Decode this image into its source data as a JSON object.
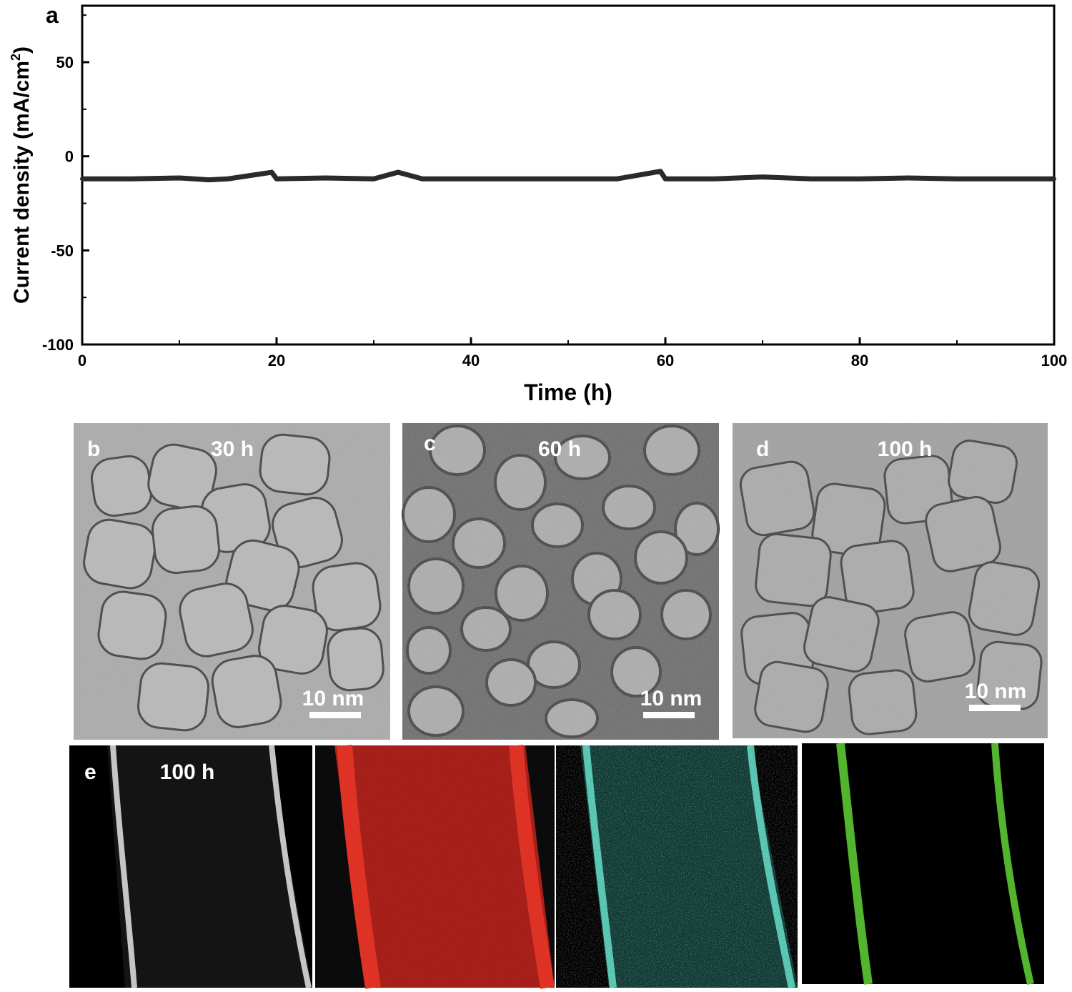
{
  "chart_data": {
    "type": "line",
    "panel_label": "a",
    "xlabel": "Time (h)",
    "ylabel": "Current density (mA/cm",
    "ylabel_sup": "2",
    "ylabel_close": ")",
    "xlim": [
      0,
      100
    ],
    "ylim": [
      -100,
      80
    ],
    "xticks": [
      0,
      20,
      40,
      60,
      80,
      100
    ],
    "yticks": [
      -100,
      -50,
      0,
      50
    ],
    "grid": false,
    "series": [
      {
        "x": [
          0,
          5,
          10,
          13,
          15,
          19.5,
          20,
          25,
          30,
          32.5,
          35,
          40,
          45,
          50,
          55,
          59.5,
          60,
          65,
          70,
          75,
          80,
          85,
          90,
          95,
          100
        ],
        "y": [
          -12,
          -12,
          -11.5,
          -12.5,
          -12,
          -8.5,
          -12,
          -11.5,
          -12,
          -8.5,
          -12,
          -12,
          -12,
          -12,
          -12,
          -8,
          -12,
          -12,
          -11,
          -12,
          -12,
          -11.5,
          -12,
          -12,
          -12
        ],
        "color": "#2a2a2a"
      }
    ]
  },
  "micrographs": [
    {
      "label": "b",
      "time": "30 h",
      "scale": "10 nm"
    },
    {
      "label": "c",
      "time": "60 h",
      "scale": "10 nm"
    },
    {
      "label": "d",
      "time": "100 h",
      "scale": "10 nm"
    }
  ],
  "maps": {
    "label": "e",
    "time": "100 h",
    "panels": [
      {
        "name": "haadf",
        "color": "#e0e0e0"
      },
      {
        "name": "red-map",
        "color": "#d21e14"
      },
      {
        "name": "cyan-map",
        "color": "#6fe8d0"
      },
      {
        "name": "green-map",
        "color": "#6ed23c"
      }
    ]
  }
}
